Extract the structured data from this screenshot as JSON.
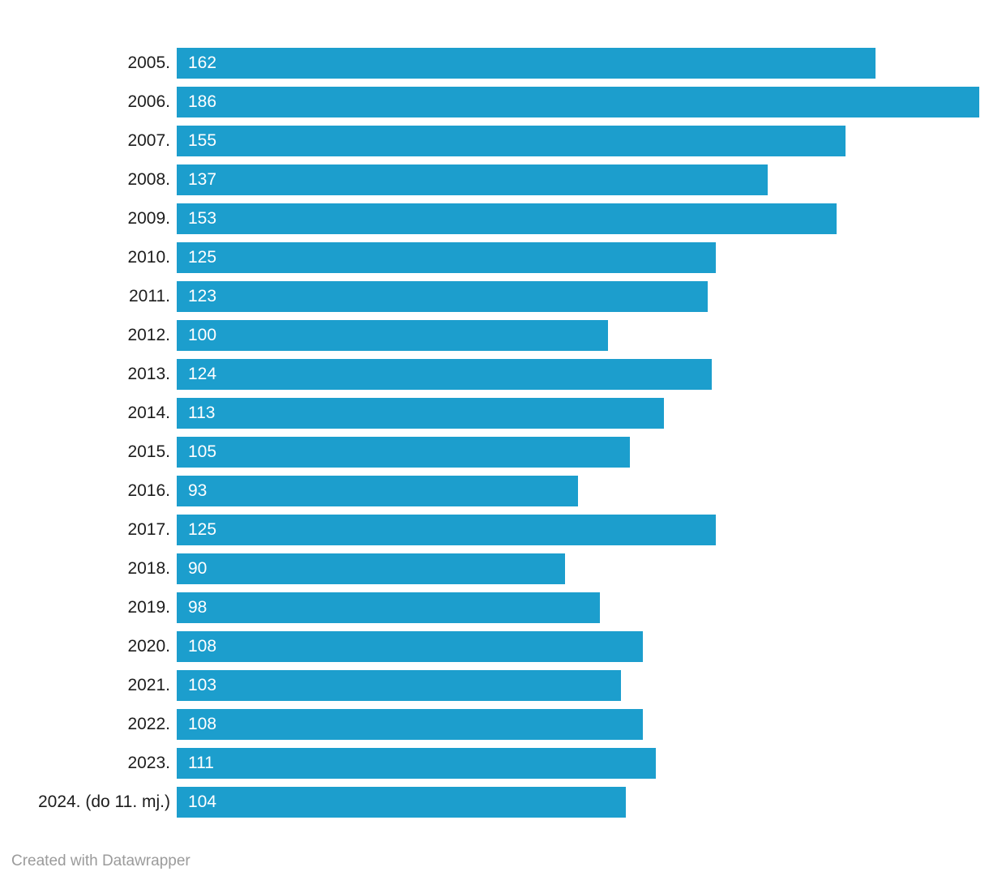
{
  "chart_data": {
    "type": "bar",
    "orientation": "horizontal",
    "title": "",
    "xlabel": "",
    "ylabel": "",
    "xlim": [
      0,
      186
    ],
    "grid": false,
    "legend": false,
    "value_labels_position": "inside-left",
    "bar_color": "#1c9ecd",
    "value_label_color": "#ffffff",
    "category_label_color": "#1d1d1d",
    "categories": [
      "2005.",
      "2006.",
      "2007.",
      "2008.",
      "2009.",
      "2010.",
      "2011.",
      "2012.",
      "2013.",
      "2014.",
      "2015.",
      "2016.",
      "2017.",
      "2018.",
      "2019.",
      "2020.",
      "2021.",
      "2022.",
      "2023.",
      "2024. (do 11. mj.)"
    ],
    "values": [
      162,
      186,
      155,
      137,
      153,
      125,
      123,
      100,
      124,
      113,
      105,
      93,
      125,
      90,
      98,
      108,
      103,
      108,
      111,
      104
    ]
  },
  "footer": {
    "credit": "Created with Datawrapper"
  }
}
